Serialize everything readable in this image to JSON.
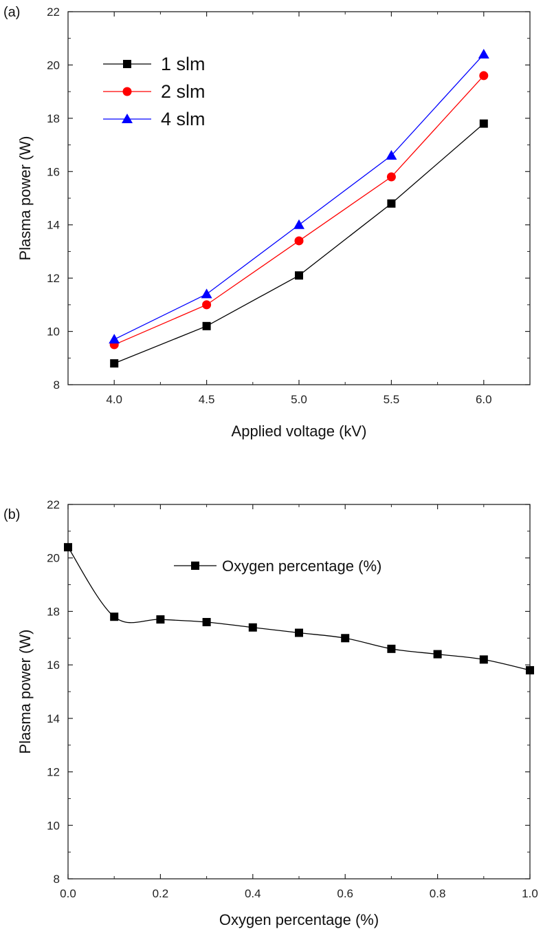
{
  "chart_data": [
    {
      "type": "line",
      "panel_label": "(a)",
      "xlabel": "Applied voltage (kV)",
      "ylabel": "Plasma power (W)",
      "xlim": [
        3.75,
        6.25
      ],
      "ylim": [
        8,
        22
      ],
      "xticks": [
        "4.0",
        "4.5",
        "5.0",
        "5.5",
        "6.0"
      ],
      "yticks": [
        "8",
        "10",
        "12",
        "14",
        "16",
        "18",
        "20",
        "22"
      ],
      "x": [
        4.0,
        4.5,
        5.0,
        5.5,
        6.0
      ],
      "series": [
        {
          "name": "1 slm",
          "values": [
            8.8,
            10.2,
            12.1,
            14.8,
            17.8
          ],
          "color": "#000000",
          "marker": "square",
          "line_color": "#000000"
        },
        {
          "name": "2 slm",
          "values": [
            9.5,
            11.0,
            13.4,
            15.8,
            19.6
          ],
          "color": "#ff0000",
          "marker": "circle",
          "line_color": "#ff0000"
        },
        {
          "name": "4 slm",
          "values": [
            9.7,
            11.4,
            14.0,
            16.6,
            20.4
          ],
          "color": "#0000ff",
          "marker": "triangle",
          "line_color": "#0000ff"
        }
      ],
      "legend_position": "top-left",
      "grid": false
    },
    {
      "type": "line",
      "panel_label": "(b)",
      "xlabel": "Oxygen percentage (%)",
      "ylabel": "Plasma power (W)",
      "xlim": [
        0.0,
        1.0
      ],
      "ylim": [
        8,
        22
      ],
      "xticks": [
        "0.0",
        "0.2",
        "0.4",
        "0.6",
        "0.8",
        "1.0"
      ],
      "yticks": [
        "8",
        "10",
        "12",
        "14",
        "16",
        "18",
        "20",
        "22"
      ],
      "x": [
        0.0,
        0.1,
        0.2,
        0.3,
        0.4,
        0.5,
        0.6,
        0.7,
        0.8,
        0.9,
        1.0
      ],
      "series": [
        {
          "name": "Oxygen percentage (%)",
          "values": [
            20.4,
            17.8,
            17.7,
            17.6,
            17.4,
            17.2,
            17.0,
            16.6,
            16.4,
            16.2,
            15.8
          ],
          "color": "#000000",
          "marker": "square",
          "line_color": "#000000",
          "smooth": true
        }
      ],
      "legend_position": "top-center",
      "grid": false
    }
  ]
}
